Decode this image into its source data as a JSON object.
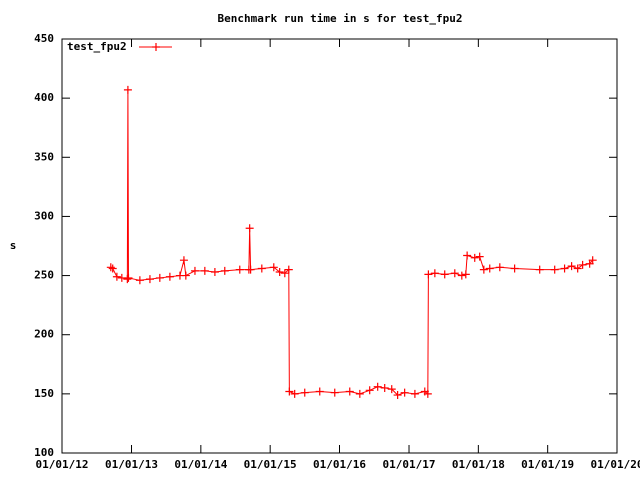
{
  "chart_data": {
    "type": "line",
    "title": "Benchmark run time in s for test_fpu2",
    "y_label": "s",
    "x": [
      "2012-09-14",
      "2012-09-24",
      "2012-10-16",
      "2012-11-11",
      "2012-12-10",
      "2012-12-13",
      "2012-12-16",
      "2013-02-14",
      "2013-04-08",
      "2013-05-30",
      "2013-07-22",
      "2013-09-13",
      "2013-10-04",
      "2013-10-14",
      "2013-12-01",
      "2014-01-22",
      "2014-03-16",
      "2014-05-07",
      "2014-07-25",
      "2014-09-11",
      "2014-09-15",
      "2014-09-20",
      "2014-11-18",
      "2015-01-20",
      "2015-02-20",
      "2015-03-19",
      "2015-04-09",
      "2015-04-12",
      "2015-05-10",
      "2015-07-02",
      "2015-09-19",
      "2015-12-07",
      "2016-02-24",
      "2016-04-17",
      "2016-06-08",
      "2016-07-20",
      "2016-08-26",
      "2016-10-02",
      "2016-11-02",
      "2016-12-09",
      "2017-02-01",
      "2017-03-25",
      "2017-04-10",
      "2017-04-13",
      "2017-05-17",
      "2017-07-08",
      "2017-08-30",
      "2017-10-06",
      "2017-10-27",
      "2017-11-03",
      "2017-12-13",
      "2018-01-08",
      "2018-01-30",
      "2018-03-02",
      "2018-04-24",
      "2018-07-11",
      "2018-11-20",
      "2019-02-07",
      "2019-03-31",
      "2019-05-07",
      "2019-06-08",
      "2019-07-04",
      "2019-08-10",
      "2019-08-26"
    ],
    "series": [
      {
        "name": "test_fpu2",
        "color": "#ff0000",
        "values": [
          257,
          256,
          249,
          248,
          247,
          407,
          248,
          246,
          247,
          248,
          249,
          250,
          263,
          250,
          254,
          254,
          253,
          254,
          255,
          255,
          290,
          255,
          256,
          257,
          253,
          252,
          255,
          152,
          150,
          151,
          152,
          151,
          152,
          150,
          153,
          156,
          155,
          154,
          149,
          151,
          150,
          152,
          150,
          251,
          252,
          251,
          252,
          250,
          251,
          267,
          265,
          266,
          255,
          256,
          257,
          256,
          255,
          255,
          256,
          258,
          256,
          259,
          260,
          263
        ]
      }
    ],
    "xlim": [
      "2012-01-01",
      "2020-01-01"
    ],
    "xticks": [
      {
        "value": "2012-01-01",
        "label": "01/01/12"
      },
      {
        "value": "2013-01-01",
        "label": "01/01/13"
      },
      {
        "value": "2014-01-01",
        "label": "01/01/14"
      },
      {
        "value": "2015-01-01",
        "label": "01/01/15"
      },
      {
        "value": "2016-01-01",
        "label": "01/01/16"
      },
      {
        "value": "2017-01-01",
        "label": "01/01/17"
      },
      {
        "value": "2018-01-01",
        "label": "01/01/18"
      },
      {
        "value": "2019-01-01",
        "label": "01/01/19"
      },
      {
        "value": "2020-01-01",
        "label": "01/01/20"
      }
    ],
    "ylim": [
      100,
      450
    ],
    "yticks": [
      100,
      150,
      200,
      250,
      300,
      350,
      400,
      450
    ],
    "legend": "top-left",
    "grid": false
  }
}
